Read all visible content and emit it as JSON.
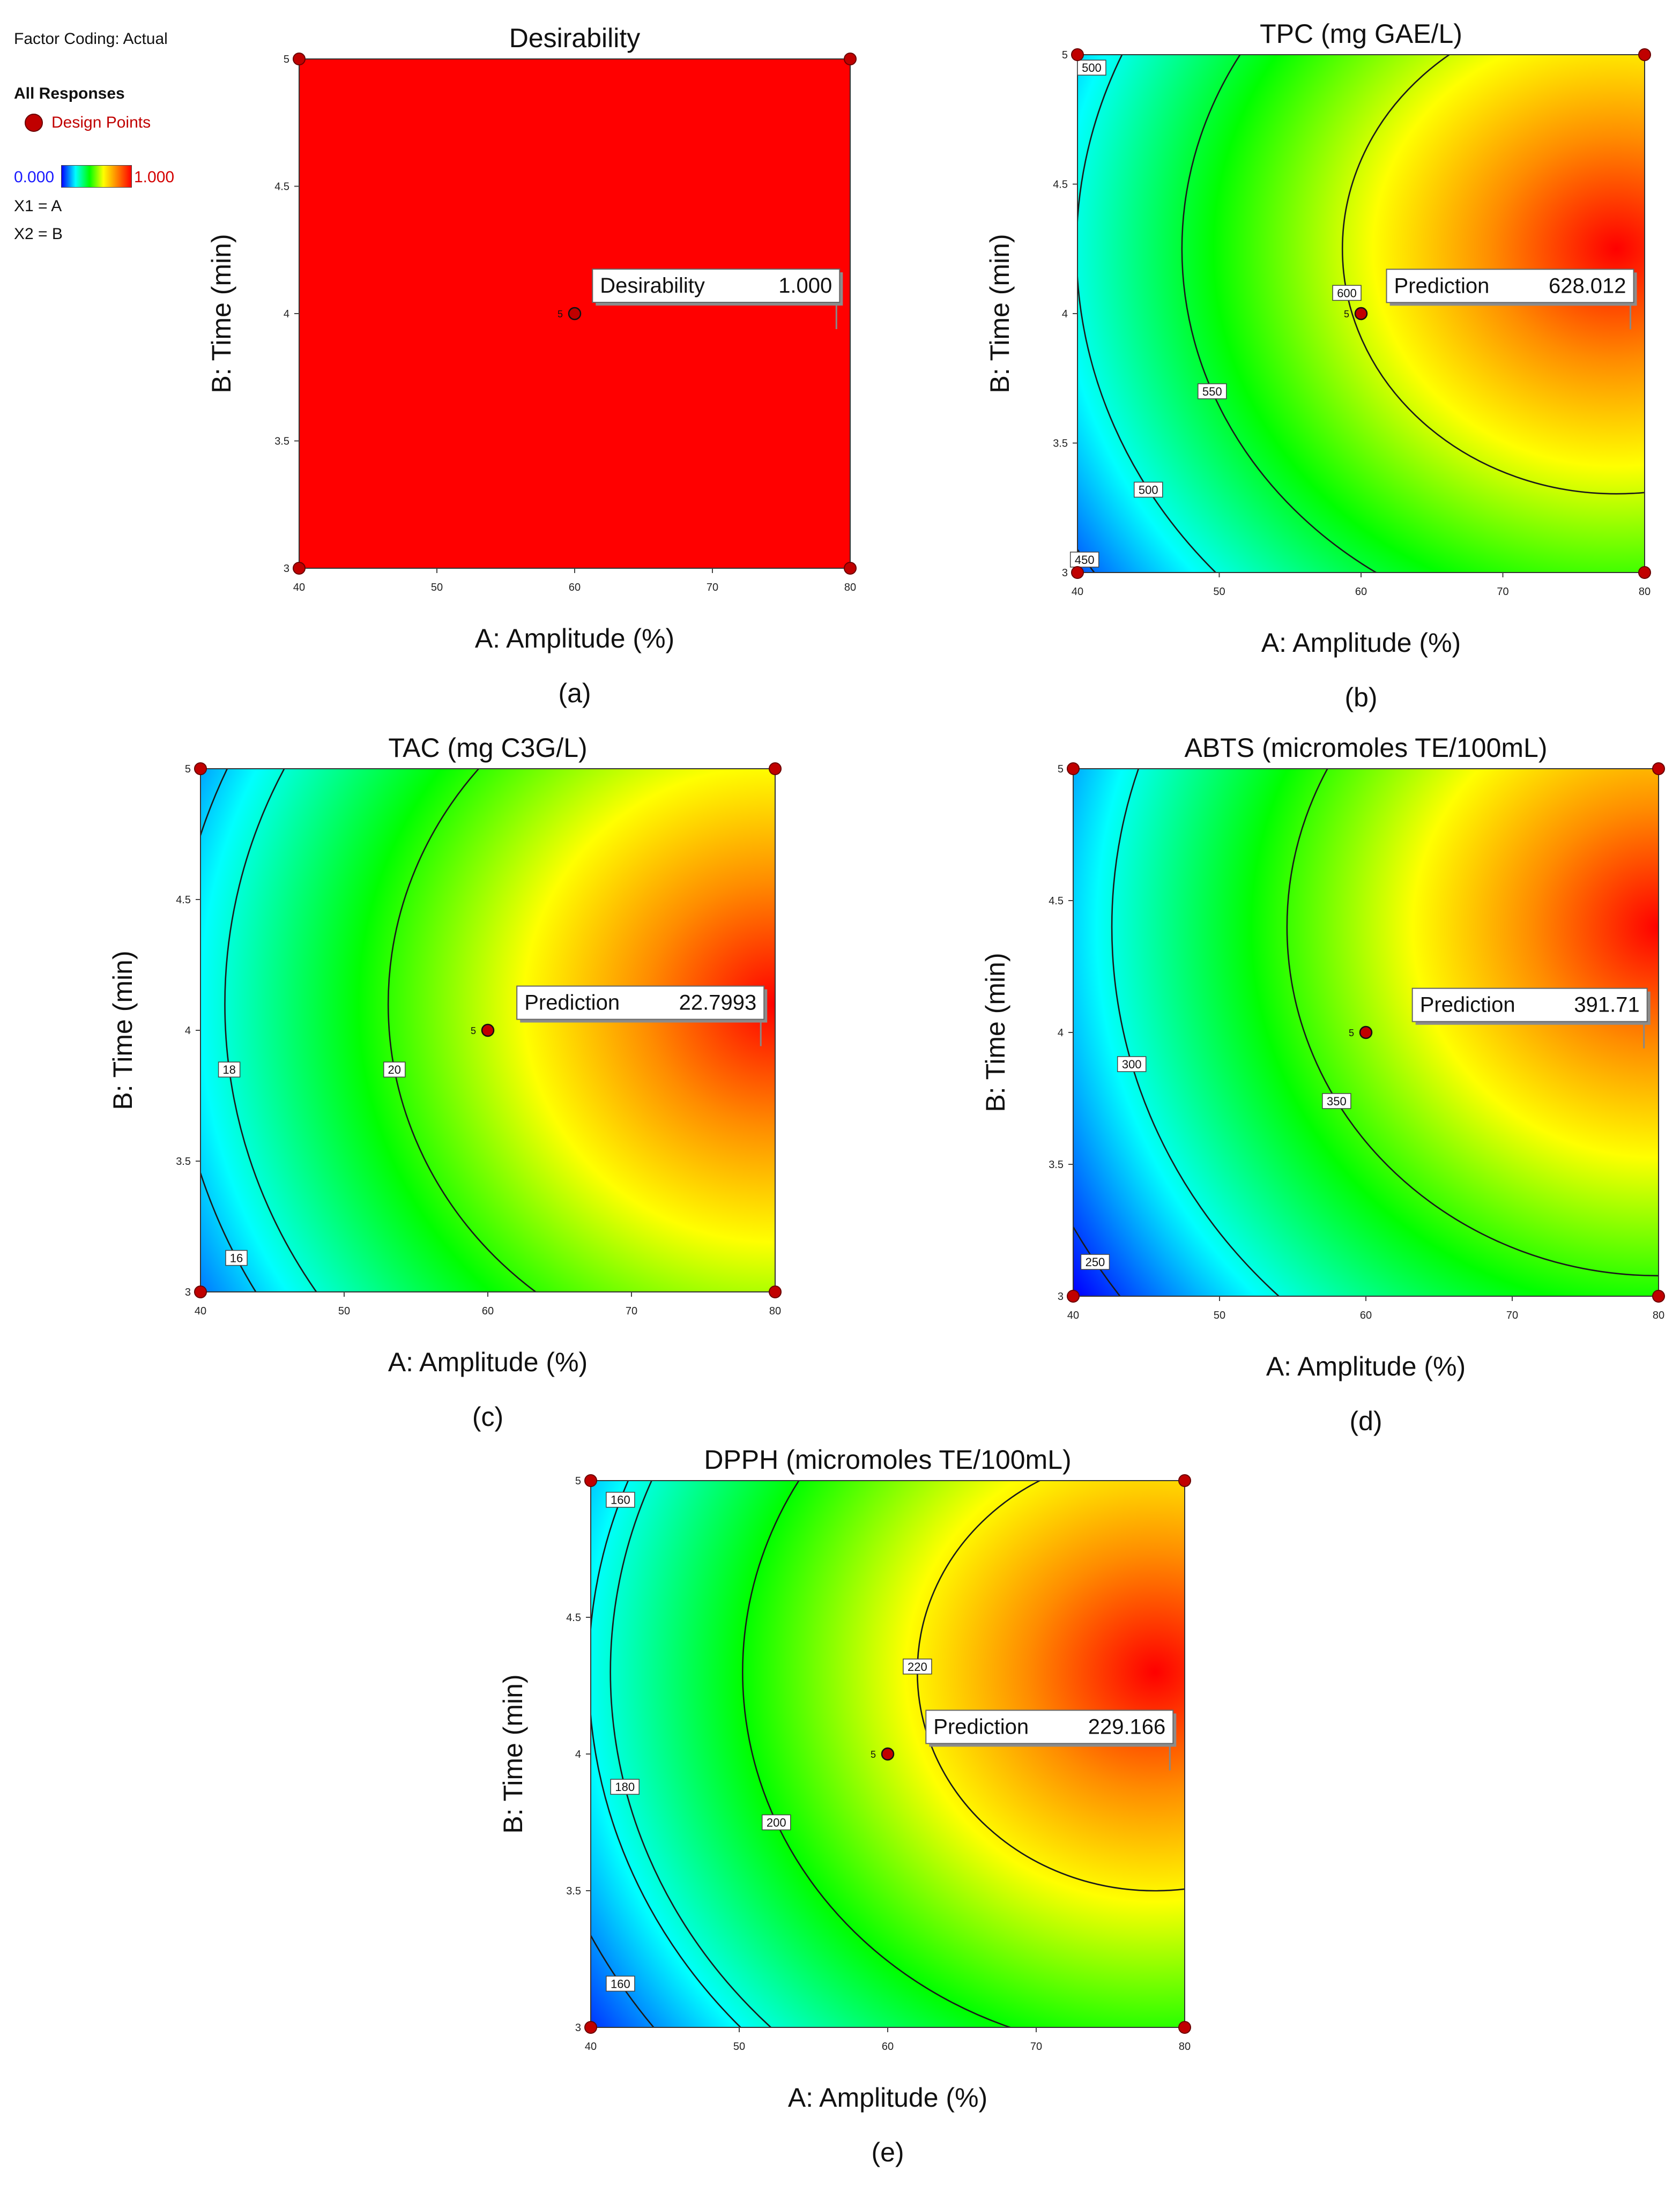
{
  "legend": {
    "factor_coding": "Factor Coding: Actual",
    "all_responses": "All Responses",
    "design_points": "Design Points",
    "scale_min": "0.000",
    "scale_max": "1.000",
    "x1": "X1 = A",
    "x2": "X2 = B"
  },
  "colors": {
    "background": "#ffffff",
    "design_point": "#c00000",
    "scale_low": "#0000ff",
    "scale_high": "#ff0000"
  },
  "chart_data": [
    {
      "id": "a",
      "panel_label": "(a)",
      "type": "heatmap",
      "title": "Desirability",
      "xlabel": "A: Amplitude (%)",
      "ylabel": "B: Time (min)",
      "xlim": [
        40,
        80
      ],
      "ylim": [
        3,
        5
      ],
      "x_ticks": [
        "40",
        "50",
        "60",
        "70",
        "80"
      ],
      "y_ticks": [
        "3",
        "3.5",
        "4",
        "4.5",
        "5"
      ],
      "flag_label": "Desirability",
      "flag_value": "1.000",
      "flag_point": [
        79,
        3.96
      ],
      "center_point": {
        "x": 60,
        "y": 4,
        "count_label": "5"
      },
      "design_points": [
        [
          40,
          3
        ],
        [
          80,
          3
        ],
        [
          40,
          5
        ],
        [
          80,
          5
        ]
      ],
      "contours": [],
      "constant_value": 1
    },
    {
      "id": "b",
      "panel_label": "(b)",
      "type": "heatmap",
      "title": "TPC (mg GAE/L)",
      "xlabel": "A: Amplitude (%)",
      "ylabel": "B: Time (min)",
      "xlim": [
        40,
        80
      ],
      "ylim": [
        3,
        5
      ],
      "x_ticks": [
        "40",
        "50",
        "60",
        "70",
        "80"
      ],
      "y_ticks": [
        "3",
        "3.5",
        "4",
        "4.5",
        "5"
      ],
      "flag_label": "Prediction",
      "flag_value": "628.012",
      "flag_point": [
        79,
        3.96
      ],
      "center_point": {
        "x": 60,
        "y": 4,
        "count_label": "5"
      },
      "design_points": [
        [
          40,
          3
        ],
        [
          80,
          3
        ],
        [
          40,
          5
        ],
        [
          80,
          5
        ]
      ],
      "contours": [
        {
          "label": "450",
          "label_at": [
            40.5,
            3.05
          ]
        },
        {
          "label": "500",
          "label_at": [
            45,
            3.32
          ]
        },
        {
          "label": "500",
          "label_at": [
            41,
            4.95
          ]
        },
        {
          "label": "550",
          "label_at": [
            49.5,
            3.7
          ]
        },
        {
          "label": "600",
          "label_at": [
            59,
            4.08
          ]
        }
      ],
      "shading": {
        "peak": [
          78,
          4.25
        ],
        "rx": 49,
        "ry": 2.4,
        "low": 440,
        "high": 630
      }
    },
    {
      "id": "c",
      "panel_label": "(c)",
      "type": "heatmap",
      "title": "TAC (mg C3G/L)",
      "xlabel": "A: Amplitude (%)",
      "ylabel": "B: Time (min)",
      "xlim": [
        40,
        80
      ],
      "ylim": [
        3,
        5
      ],
      "x_ticks": [
        "40",
        "50",
        "60",
        "70",
        "80"
      ],
      "y_ticks": [
        "3",
        "3.5",
        "4",
        "4.5",
        "5"
      ],
      "flag_label": "Prediction",
      "flag_value": "22.7993",
      "flag_point": [
        79,
        3.96
      ],
      "center_point": {
        "x": 60,
        "y": 4,
        "count_label": "5"
      },
      "design_points": [
        [
          40,
          3
        ],
        [
          80,
          3
        ],
        [
          40,
          5
        ],
        [
          80,
          5
        ]
      ],
      "contours": [
        {
          "label": "16",
          "label_at": [
            42.5,
            3.13
          ]
        },
        {
          "label": "18",
          "label_at": [
            42,
            3.85
          ]
        },
        {
          "label": "20",
          "label_at": [
            53.5,
            3.85
          ]
        }
      ],
      "shading": {
        "peak": [
          80,
          4.1
        ],
        "rx": 50,
        "ry": 2.6,
        "low": 15.2,
        "high": 23.5
      }
    },
    {
      "id": "d",
      "panel_label": "(d)",
      "type": "heatmap",
      "title": "ABTS (micromoles TE/100mL)",
      "xlabel": "A: Amplitude (%)",
      "ylabel": "B: Time (min)",
      "xlim": [
        40,
        80
      ],
      "ylim": [
        3,
        5
      ],
      "x_ticks": [
        "40",
        "50",
        "60",
        "70",
        "80"
      ],
      "y_ticks": [
        "3",
        "3.5",
        "4",
        "4.5",
        "5"
      ],
      "flag_label": "Prediction",
      "flag_value": "391.71",
      "flag_point": [
        79,
        3.96
      ],
      "center_point": {
        "x": 60,
        "y": 4,
        "count_label": "5"
      },
      "design_points": [
        [
          40,
          3
        ],
        [
          80,
          3
        ],
        [
          40,
          5
        ],
        [
          80,
          5
        ]
      ],
      "contours": [
        {
          "label": "250",
          "label_at": [
            41.5,
            3.13
          ]
        },
        {
          "label": "300",
          "label_at": [
            44,
            3.88
          ]
        },
        {
          "label": "350",
          "label_at": [
            58,
            3.74
          ]
        }
      ],
      "shading": {
        "peak": [
          80,
          4.4
        ],
        "rx": 48,
        "ry": 2.5,
        "low": 230,
        "high": 400
      }
    },
    {
      "id": "e",
      "panel_label": "(e)",
      "type": "heatmap",
      "title": "DPPH (micromoles TE/100mL)",
      "xlabel": "A: Amplitude (%)",
      "ylabel": "B: Time (min)",
      "xlim": [
        40,
        80
      ],
      "ylim": [
        3,
        5
      ],
      "x_ticks": [
        "40",
        "50",
        "60",
        "70",
        "80"
      ],
      "y_ticks": [
        "3",
        "3.5",
        "4",
        "4.5",
        "5"
      ],
      "flag_label": "Prediction",
      "flag_value": "229.166",
      "flag_point": [
        79,
        3.96
      ],
      "center_point": {
        "x": 60,
        "y": 4,
        "count_label": "5"
      },
      "design_points": [
        [
          40,
          3
        ],
        [
          80,
          3
        ],
        [
          40,
          5
        ],
        [
          80,
          5
        ]
      ],
      "contours": [
        {
          "label": "160",
          "label_at": [
            42,
            3.16
          ]
        },
        {
          "label": "160",
          "label_at": [
            42,
            4.93
          ]
        },
        {
          "label": "180",
          "label_at": [
            42.3,
            3.88
          ]
        },
        {
          "label": "200",
          "label_at": [
            52.5,
            3.75
          ]
        },
        {
          "label": "220",
          "label_at": [
            62,
            4.32
          ]
        }
      ],
      "shading": {
        "peak": [
          78,
          4.3
        ],
        "rx": 48,
        "ry": 2.4,
        "low": 145,
        "high": 235
      }
    }
  ]
}
